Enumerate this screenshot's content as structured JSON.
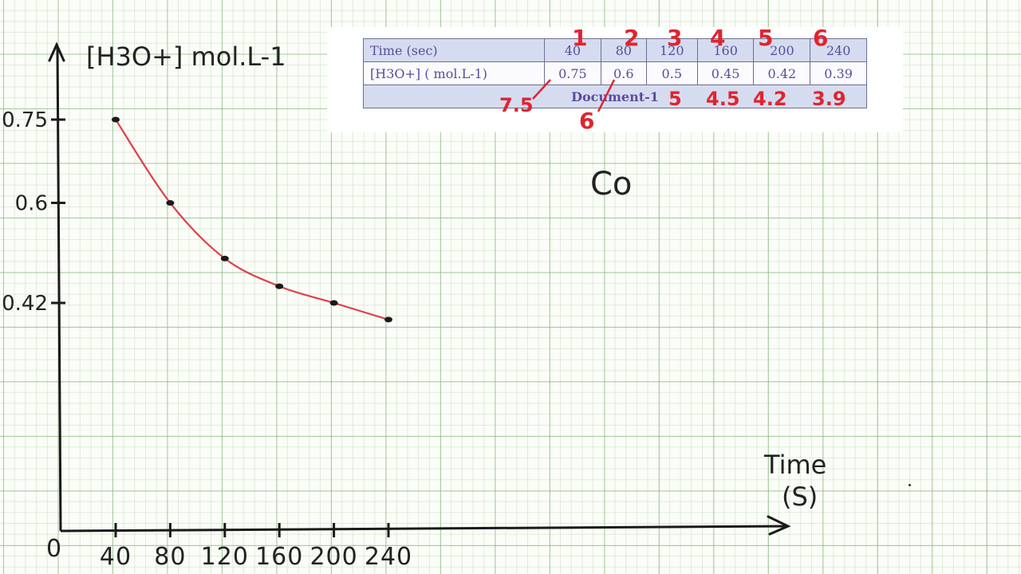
{
  "chart_data": {
    "type": "line",
    "y_axis_title": "[H3O+] mol.L-1",
    "x_axis_title": "Time",
    "x_axis_unit": "(S)",
    "origin_label": "0",
    "x_tick_labels": [
      "40",
      "80",
      "120",
      "160",
      "200",
      "240"
    ],
    "y_tick_labels": [
      "0.75",
      "0.6",
      "0.42"
    ],
    "xlim": [
      0,
      470
    ],
    "ylim": [
      0.2,
      0.8
    ],
    "series": [
      {
        "x": [
          40,
          80,
          120,
          160,
          200,
          240
        ],
        "y": [
          0.75,
          0.6,
          0.5,
          0.45,
          0.42,
          0.39
        ],
        "line_color": "#e0404a",
        "point_color": "#1a1a1a"
      }
    ],
    "grid": true
  },
  "table": {
    "row1_label": "Time (sec)",
    "row2_label": "[H3O+] ( mol.L-1)",
    "times": [
      "40",
      "80",
      "120",
      "160",
      "200",
      "240"
    ],
    "concentrations": [
      "0.75",
      "0.6",
      "0.5",
      "0.45",
      "0.42",
      "0.39"
    ],
    "caption": "Document-1",
    "header_color": "#d6dcf0",
    "text_color": "#5a4d9c"
  },
  "annotations": {
    "column_numbers": [
      "1",
      "2",
      "3",
      "4",
      "5",
      "6"
    ],
    "scaled_values": [
      "7.5",
      "6",
      "5",
      "4.5",
      "4.2",
      "3.9"
    ],
    "color": "#e0242e"
  },
  "note_label": "Co"
}
